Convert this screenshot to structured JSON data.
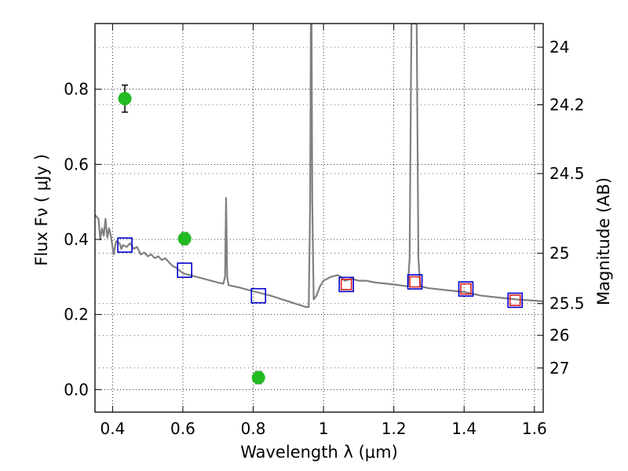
{
  "chart_data": {
    "type": "scatter",
    "xlabel": "Wavelength  λ (μm)",
    "ylabel": "Flux  Fν  ( μJy )",
    "y2label": "Magnitude (AB)",
    "xlim": [
      0.35,
      1.625
    ],
    "ylim": [
      -0.06,
      0.975
    ],
    "grid": true,
    "x_ticks": [
      {
        "value": 0.4,
        "label": "0.4"
      },
      {
        "value": 0.6,
        "label": "0.6"
      },
      {
        "value": 0.8,
        "label": "0.8"
      },
      {
        "value": 1.0,
        "label": "1"
      },
      {
        "value": 1.2,
        "label": "1.2"
      },
      {
        "value": 1.4,
        "label": "1.4"
      },
      {
        "value": 1.6,
        "label": "1.6"
      }
    ],
    "y_ticks": [
      {
        "value": 0.0,
        "label": "0.0"
      },
      {
        "value": 0.2,
        "label": "0.2"
      },
      {
        "value": 0.4,
        "label": "0.4"
      },
      {
        "value": 0.6,
        "label": "0.6"
      },
      {
        "value": 0.8,
        "label": "0.8"
      }
    ],
    "y2_ticks": [
      {
        "value": 24,
        "label": "24"
      },
      {
        "value": 24.2,
        "label": "24.2"
      },
      {
        "value": 24.5,
        "label": "24.5"
      },
      {
        "value": 25,
        "label": "25"
      },
      {
        "value": 25.5,
        "label": "25.5"
      },
      {
        "value": 26,
        "label": "26"
      },
      {
        "value": 27,
        "label": "27"
      }
    ],
    "series": [
      {
        "kind": "line",
        "color": "#808080",
        "points": [
          [
            0.35,
            0.465
          ],
          [
            0.36,
            0.455
          ],
          [
            0.365,
            0.4
          ],
          [
            0.37,
            0.43
          ],
          [
            0.375,
            0.41
          ],
          [
            0.38,
            0.455
          ],
          [
            0.385,
            0.405
          ],
          [
            0.39,
            0.43
          ],
          [
            0.395,
            0.41
          ],
          [
            0.4,
            0.38
          ],
          [
            0.403,
            0.36
          ],
          [
            0.41,
            0.395
          ],
          [
            0.42,
            0.39
          ],
          [
            0.425,
            0.375
          ],
          [
            0.43,
            0.385
          ],
          [
            0.44,
            0.38
          ],
          [
            0.45,
            0.39
          ],
          [
            0.46,
            0.375
          ],
          [
            0.47,
            0.38
          ],
          [
            0.48,
            0.36
          ],
          [
            0.49,
            0.365
          ],
          [
            0.5,
            0.355
          ],
          [
            0.51,
            0.36
          ],
          [
            0.52,
            0.35
          ],
          [
            0.53,
            0.355
          ],
          [
            0.54,
            0.345
          ],
          [
            0.55,
            0.35
          ],
          [
            0.56,
            0.34
          ],
          [
            0.57,
            0.33
          ],
          [
            0.58,
            0.325
          ],
          [
            0.6,
            0.31
          ],
          [
            0.62,
            0.305
          ],
          [
            0.64,
            0.3
          ],
          [
            0.66,
            0.295
          ],
          [
            0.68,
            0.29
          ],
          [
            0.7,
            0.285
          ],
          [
            0.715,
            0.282
          ],
          [
            0.72,
            0.3
          ],
          [
            0.723,
            0.51
          ],
          [
            0.726,
            0.3
          ],
          [
            0.73,
            0.278
          ],
          [
            0.76,
            0.272
          ],
          [
            0.8,
            0.262
          ],
          [
            0.85,
            0.25
          ],
          [
            0.9,
            0.235
          ],
          [
            0.95,
            0.22
          ],
          [
            0.958,
            0.22
          ],
          [
            0.962,
            0.5
          ],
          [
            0.964,
            0.975
          ],
          [
            0.966,
            0.975
          ],
          [
            0.968,
            0.5
          ],
          [
            0.972,
            0.24
          ],
          [
            0.98,
            0.25
          ],
          [
            0.99,
            0.275
          ],
          [
            1.0,
            0.29
          ],
          [
            1.02,
            0.3
          ],
          [
            1.04,
            0.305
          ],
          [
            1.05,
            0.3
          ],
          [
            1.06,
            0.29
          ],
          [
            1.08,
            0.295
          ],
          [
            1.1,
            0.29
          ],
          [
            1.12,
            0.29
          ],
          [
            1.15,
            0.285
          ],
          [
            1.2,
            0.28
          ],
          [
            1.24,
            0.275
          ],
          [
            1.245,
            0.35
          ],
          [
            1.25,
            0.975
          ],
          [
            1.265,
            0.975
          ],
          [
            1.27,
            0.35
          ],
          [
            1.275,
            0.275
          ],
          [
            1.3,
            0.27
          ],
          [
            1.35,
            0.265
          ],
          [
            1.4,
            0.26
          ],
          [
            1.45,
            0.25
          ],
          [
            1.5,
            0.245
          ],
          [
            1.55,
            0.24
          ],
          [
            1.6,
            0.237
          ],
          [
            1.625,
            0.235
          ]
        ]
      },
      {
        "kind": "error_points",
        "color": "#22bb22",
        "x": [
          0.435,
          0.605,
          0.815
        ],
        "y": [
          0.775,
          0.402,
          0.032
        ],
        "yerr": [
          0.036,
          0.016,
          0.016
        ]
      },
      {
        "kind": "squares",
        "color": "#0000cc",
        "x": [
          0.435,
          0.605,
          0.815,
          1.065,
          1.26,
          1.405,
          1.545
        ],
        "y": [
          0.385,
          0.318,
          0.25,
          0.28,
          0.287,
          0.268,
          0.238
        ]
      },
      {
        "kind": "squares",
        "color": "#dd2222",
        "x": [
          1.065,
          1.26,
          1.405,
          1.545
        ],
        "y": [
          0.28,
          0.287,
          0.268,
          0.238
        ]
      }
    ]
  }
}
